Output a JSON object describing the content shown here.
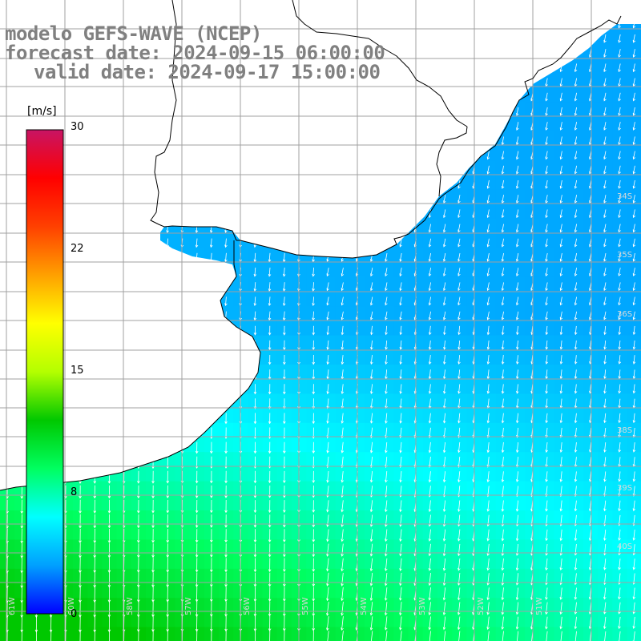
{
  "title": {
    "model_line": "modelo GEFS-WAVE (NCEP)",
    "forecast_line": "forecast date: 2024-09-15 06:00:00",
    "valid_line": "valid date: 2024-09-17 15:00:00"
  },
  "colorbar": {
    "units": "[m/s]",
    "ticks": [
      {
        "label": "30",
        "value": 30
      },
      {
        "label": "22",
        "value": 22
      },
      {
        "label": "15",
        "value": 15
      },
      {
        "label": "8",
        "value": 8
      },
      {
        "label": "0",
        "value": 0
      }
    ],
    "range": [
      0,
      30
    ],
    "gradient": [
      "#0000ff",
      "#00a0ff",
      "#00ffff",
      "#00ff60",
      "#00c800",
      "#b4ff00",
      "#ffff00",
      "#ffa000",
      "#ff4000",
      "#ff0000",
      "#c81464"
    ]
  },
  "map": {
    "lat_labels": [
      "34S",
      "35S",
      "36S",
      "38S",
      "39S",
      "40S"
    ],
    "lon_labels": [
      "61W",
      "60W",
      "58W",
      "57W",
      "56W",
      "55W",
      "54W",
      "53W",
      "52W",
      "51W"
    ],
    "land_color": "#ffffff",
    "coast_color": "#000000",
    "grid_color": "#a0a0a0"
  }
}
